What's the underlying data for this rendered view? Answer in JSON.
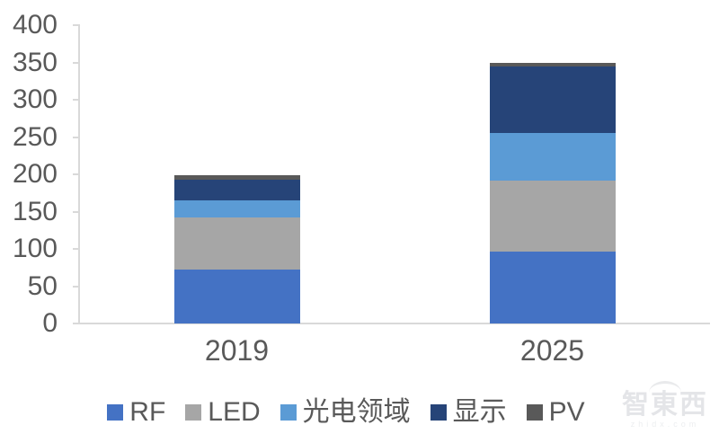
{
  "chart_data": {
    "type": "bar",
    "stacked": true,
    "title": "",
    "xlabel": "",
    "ylabel": "",
    "categories": [
      "2019",
      "2025"
    ],
    "series": [
      {
        "name": "RF",
        "color": "#4472C4",
        "values": [
          72,
          96
        ]
      },
      {
        "name": "LED",
        "color": "#A6A6A6",
        "values": [
          70,
          96
        ]
      },
      {
        "name": "光电领域",
        "color": "#5B9BD5",
        "values": [
          23,
          63
        ]
      },
      {
        "name": "显示",
        "color": "#264478",
        "values": [
          28,
          90
        ]
      },
      {
        "name": "PV",
        "color": "#595959",
        "values": [
          6,
          4
        ]
      }
    ],
    "totals": [
      199,
      349
    ],
    "ylim": [
      0,
      400
    ],
    "yticks": [
      0,
      50,
      100,
      150,
      200,
      250,
      300,
      350,
      400
    ],
    "grid": false,
    "legend_position": "bottom"
  },
  "colors": {
    "axis_line": "#D9D9D9",
    "tick_text": "#595959",
    "legend_text": "#595959"
  },
  "watermark": {
    "text": "智東西",
    "subtext": "zhidx.com"
  }
}
